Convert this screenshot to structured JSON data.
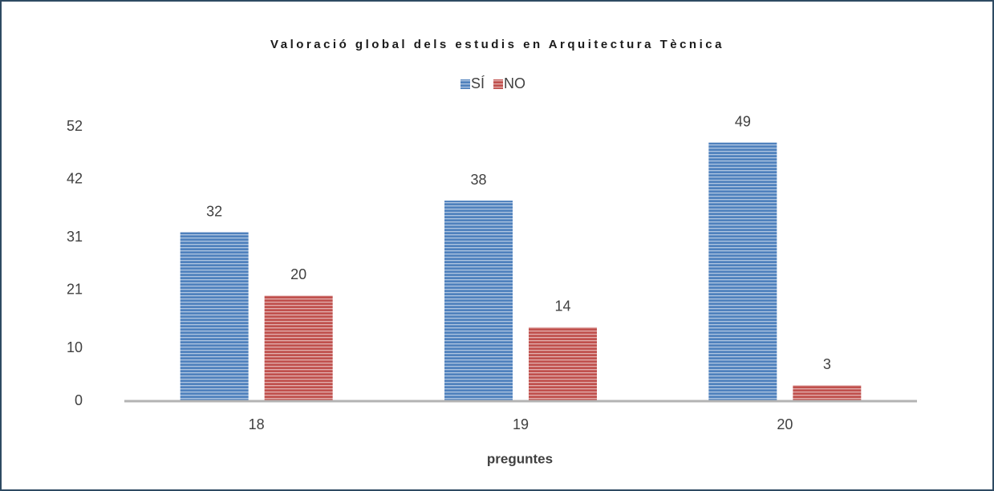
{
  "chart_data": {
    "type": "bar",
    "title": "Valoració global dels estudis en Arquitectura Tècnica",
    "x_label": "preguntes",
    "categories": [
      "18",
      "19",
      "20"
    ],
    "series": [
      {
        "name": "SÍ",
        "color": "#4f81bd",
        "values": [
          32,
          38,
          49
        ]
      },
      {
        "name": "NO",
        "color": "#c0504d",
        "values": [
          20,
          14,
          3
        ]
      }
    ],
    "ylim": [
      0,
      52
    ],
    "yticks": [
      0,
      10,
      21,
      31,
      42,
      52
    ],
    "grid": false,
    "legend": "top"
  }
}
